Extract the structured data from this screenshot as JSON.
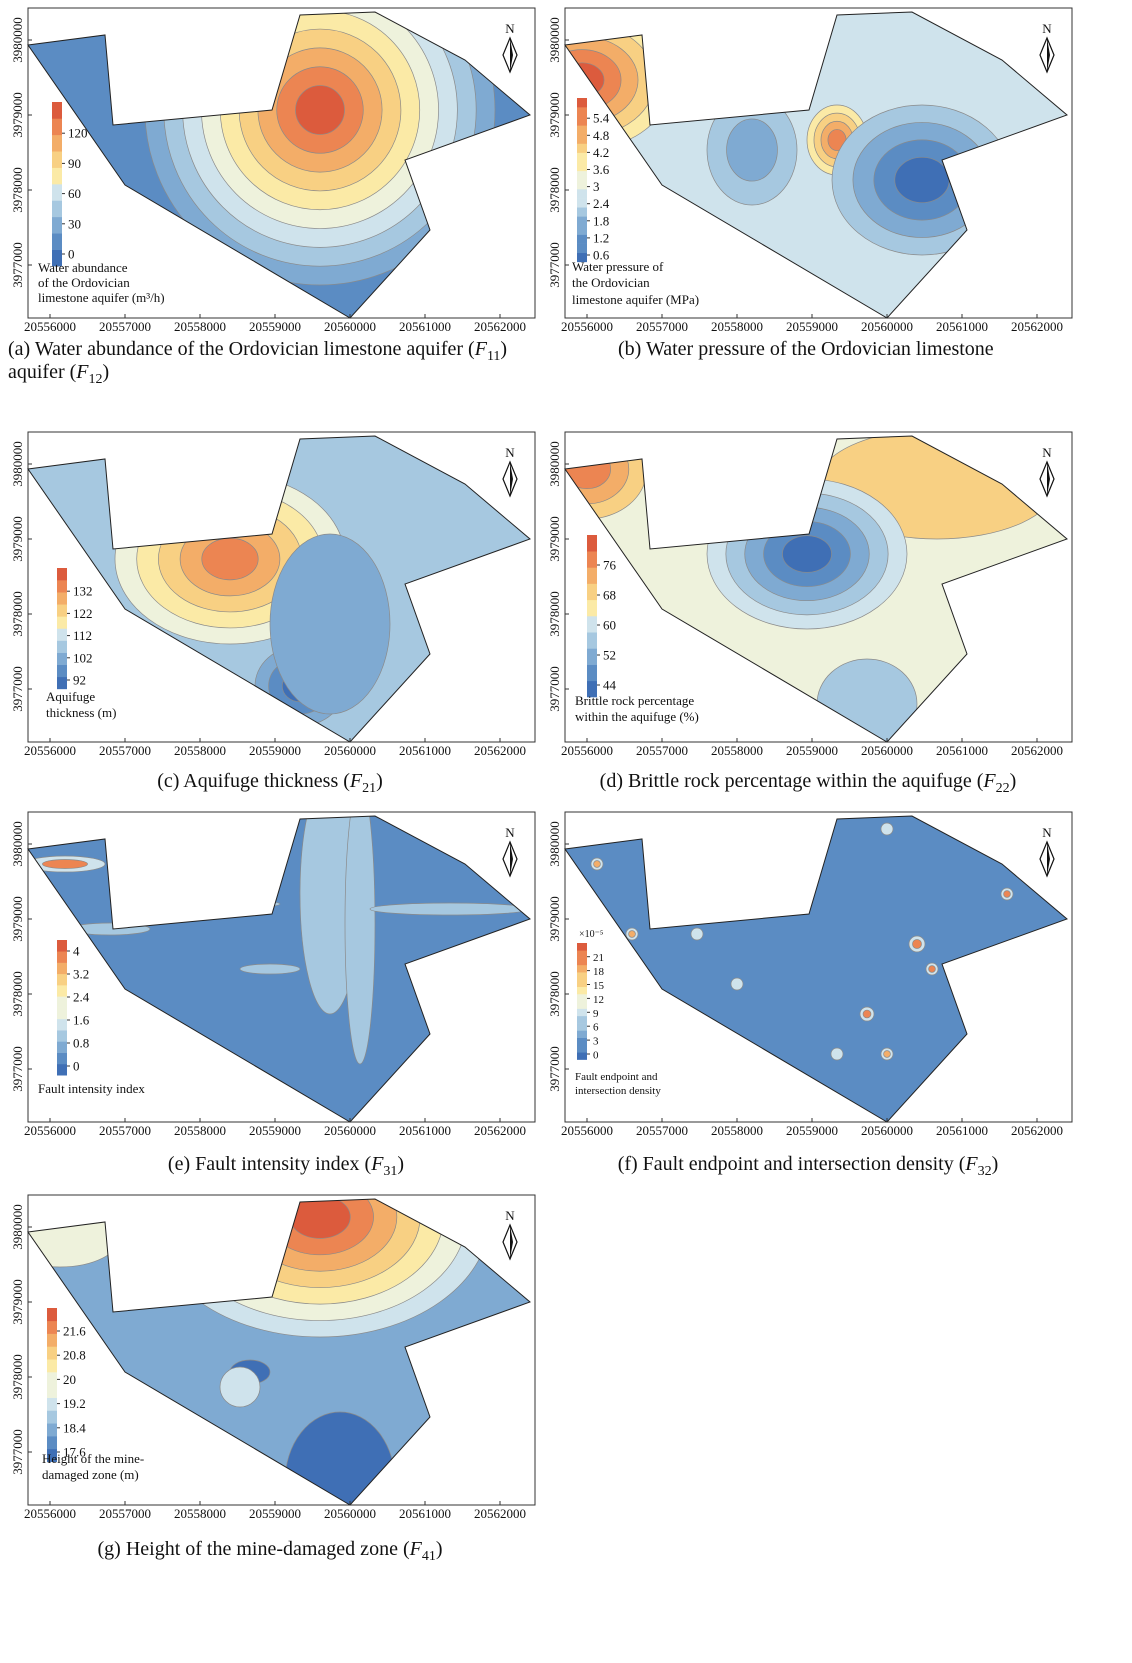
{
  "axes": {
    "x_ticks": [
      20556000,
      20557000,
      20558000,
      20559000,
      20560000,
      20561000,
      20562000
    ],
    "y_ticks": [
      3980000,
      3979000,
      3978000,
      3977000
    ]
  },
  "north_label": "N",
  "colormap": [
    "#3f6fb5",
    "#5b8cc3",
    "#7faad2",
    "#a6c8e0",
    "#cfe3ec",
    "#eef2dc",
    "#fbeaa6",
    "#f8d083",
    "#f3ad68",
    "#ec8552",
    "#dc5b3d"
  ],
  "panels": [
    {
      "legend_ticks": [
        0,
        30,
        60,
        90,
        120
      ],
      "legend_title": [
        "Water abundance",
        "of the Ordovician",
        "limestone aquifer (m³/h)"
      ],
      "caption": [
        "(a) Water abundance of the Ordovician limestone aquifer ("
      ],
      "symbol": "F",
      "subscript": "11",
      "caption_end": ")"
    },
    {
      "legend_ticks": [
        0.6,
        1.2,
        1.8,
        2.4,
        3,
        3.6,
        4.2,
        4.8,
        5.4
      ],
      "legend_title": [
        "Water pressure of",
        "the Ordovician",
        "limestone aquifer (MPa)"
      ],
      "caption": [
        "(b) Water pressure of the Ordovician limestone",
        "aquifer ("
      ],
      "symbol": "F",
      "subscript": "12",
      "caption_end": ")"
    },
    {
      "legend_ticks": [
        92,
        102,
        112,
        122,
        132
      ],
      "legend_title": [
        "Aquifuge",
        "thickness (m)"
      ],
      "caption": [
        "(c) Aquifuge thickness ("
      ],
      "symbol": "F",
      "subscript": "21",
      "caption_end": ")"
    },
    {
      "legend_ticks": [
        44,
        52,
        60,
        68,
        76
      ],
      "legend_title": [
        "Brittle rock percentage",
        "within the aquifuge (%)"
      ],
      "caption": [
        "(d) Brittle rock percentage within the aquifuge ("
      ],
      "symbol": "F",
      "subscript": "22",
      "caption_end": ")"
    },
    {
      "legend_ticks": [
        0,
        0.8,
        1.6,
        2.4,
        3.2,
        4
      ],
      "legend_title": [
        "Fault intensity index"
      ],
      "caption": [
        "(e) Fault intensity index ("
      ],
      "symbol": "F",
      "subscript": "31",
      "caption_end": ")"
    },
    {
      "legend_ticks": [
        0,
        3,
        6,
        9,
        12,
        15,
        18,
        21
      ],
      "legend_exponent": "×10⁻⁵",
      "legend_title": [
        "Fault endpoint and",
        "intersection density"
      ],
      "caption": [
        "(f) Fault endpoint and intersection density ("
      ],
      "symbol": "F",
      "subscript": "32",
      "caption_end": ")"
    },
    {
      "legend_ticks": [
        17.6,
        18.4,
        19.2,
        20,
        20.8,
        21.6
      ],
      "legend_title": [
        "Height of the mine-",
        "damaged zone (m)"
      ],
      "caption": [
        "(g) Height of the mine-damaged zone ("
      ],
      "symbol": "F",
      "subscript": "41",
      "caption_end": ")"
    }
  ]
}
